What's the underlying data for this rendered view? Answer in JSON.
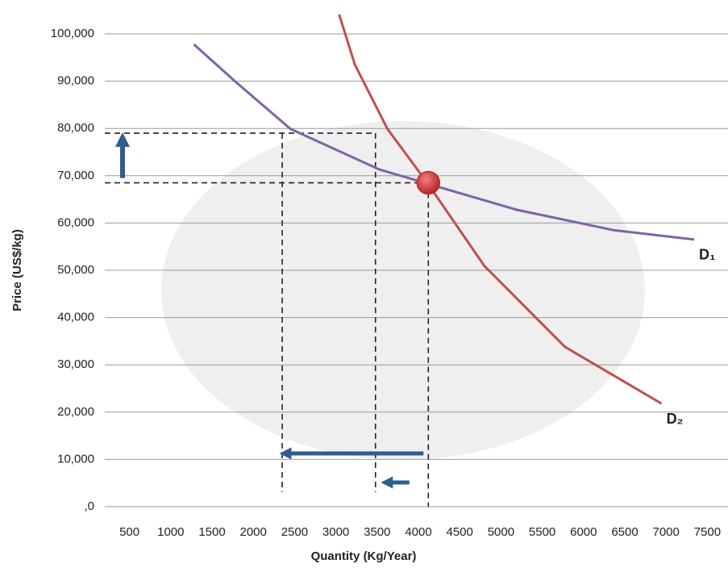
{
  "chart_data": {
    "type": "line",
    "x_label": "Quantity (Kg/Year)",
    "y_label": "Price (US$/kg)",
    "xlim": [
      250,
      7750
    ],
    "xticks": [
      500,
      1000,
      1500,
      2000,
      2500,
      3000,
      3500,
      4000,
      4500,
      5000,
      5500,
      6000,
      6500,
      7000,
      7500
    ],
    "ylim": [
      0,
      100000
    ],
    "yticks": [
      {
        "value": 0,
        "label": ",0"
      },
      {
        "value": 10000,
        "label": "10,000"
      },
      {
        "value": 20000,
        "label": "20,000"
      },
      {
        "value": 30000,
        "label": "30,000"
      },
      {
        "value": 40000,
        "label": "40,000"
      },
      {
        "value": 50000,
        "label": "50,000"
      },
      {
        "value": 60000,
        "label": "60,000"
      },
      {
        "value": 70000,
        "label": "70,000"
      },
      {
        "value": 80000,
        "label": "80,000"
      },
      {
        "value": 90000,
        "label": "90,000"
      },
      {
        "value": 100000,
        "label": "100,000"
      }
    ],
    "grid": true,
    "series": [
      {
        "name": "D₁",
        "color": "#8064a2",
        "x": [
          1280,
          1770,
          2450,
          3530,
          4115,
          5190,
          6360,
          7340
        ],
        "values": [
          97800,
          90100,
          79900,
          71300,
          68300,
          62800,
          58500,
          56500
        ]
      },
      {
        "name": "D₂",
        "color": "#c0504d",
        "x": [
          3040,
          3230,
          3625,
          4115,
          4800,
          5775,
          6945
        ],
        "values": [
          104100,
          93500,
          79900,
          68300,
          50900,
          33800,
          21800
        ]
      }
    ],
    "equilibrium": {
      "x": 4120,
      "y": 68500,
      "color": "#c0282a"
    },
    "guides": {
      "prices": [
        68500,
        79000
      ],
      "quantities": [
        2350,
        3480,
        4120
      ]
    },
    "arrow_color": "#2e5d8e"
  }
}
